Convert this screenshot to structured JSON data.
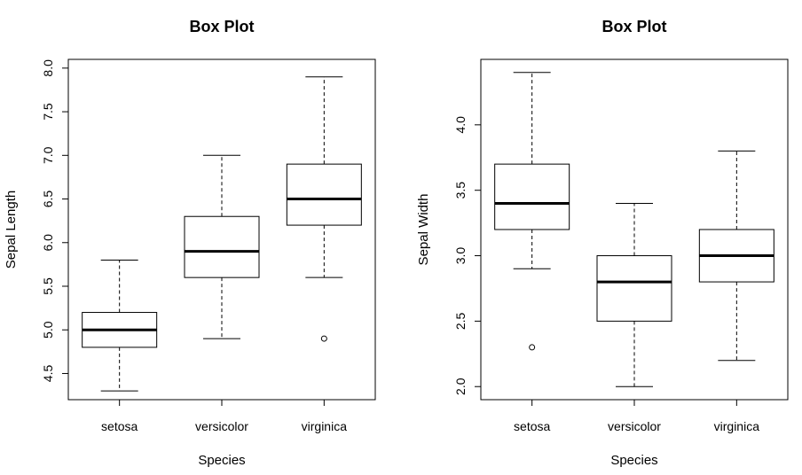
{
  "chart_data": [
    {
      "type": "box",
      "title": "Box Plot",
      "xlabel": "Species",
      "ylabel": "Sepal Length",
      "categories": [
        "setosa",
        "versicolor",
        "virginica"
      ],
      "yticks": [
        "4.5",
        "5.0",
        "5.5",
        "6.0",
        "6.5",
        "7.0",
        "7.5",
        "8.0"
      ],
      "ylim": [
        4.2,
        8.1
      ],
      "boxes": [
        {
          "name": "setosa",
          "min": 4.3,
          "q1": 4.8,
          "median": 5.0,
          "q3": 5.2,
          "max": 5.8,
          "outliers": []
        },
        {
          "name": "versicolor",
          "min": 4.9,
          "q1": 5.6,
          "median": 5.9,
          "q3": 6.3,
          "max": 7.0,
          "outliers": []
        },
        {
          "name": "virginica",
          "min": 5.6,
          "q1": 6.2,
          "median": 6.5,
          "q3": 6.9,
          "max": 7.9,
          "outliers": [
            4.9
          ]
        }
      ]
    },
    {
      "type": "box",
      "title": "Box Plot",
      "xlabel": "Species",
      "ylabel": "Sepal Width",
      "categories": [
        "setosa",
        "versicolor",
        "virginica"
      ],
      "yticks": [
        "2.0",
        "2.5",
        "3.0",
        "3.5",
        "4.0"
      ],
      "ylim": [
        1.9,
        4.5
      ],
      "boxes": [
        {
          "name": "setosa",
          "min": 2.9,
          "q1": 3.2,
          "median": 3.4,
          "q3": 3.7,
          "max": 4.4,
          "outliers": [
            2.3
          ]
        },
        {
          "name": "versicolor",
          "min": 2.0,
          "q1": 2.5,
          "median": 2.8,
          "q3": 3.0,
          "max": 3.4,
          "outliers": []
        },
        {
          "name": "virginica",
          "min": 2.2,
          "q1": 2.8,
          "median": 3.0,
          "q3": 3.2,
          "max": 3.8,
          "outliers": []
        }
      ]
    }
  ]
}
